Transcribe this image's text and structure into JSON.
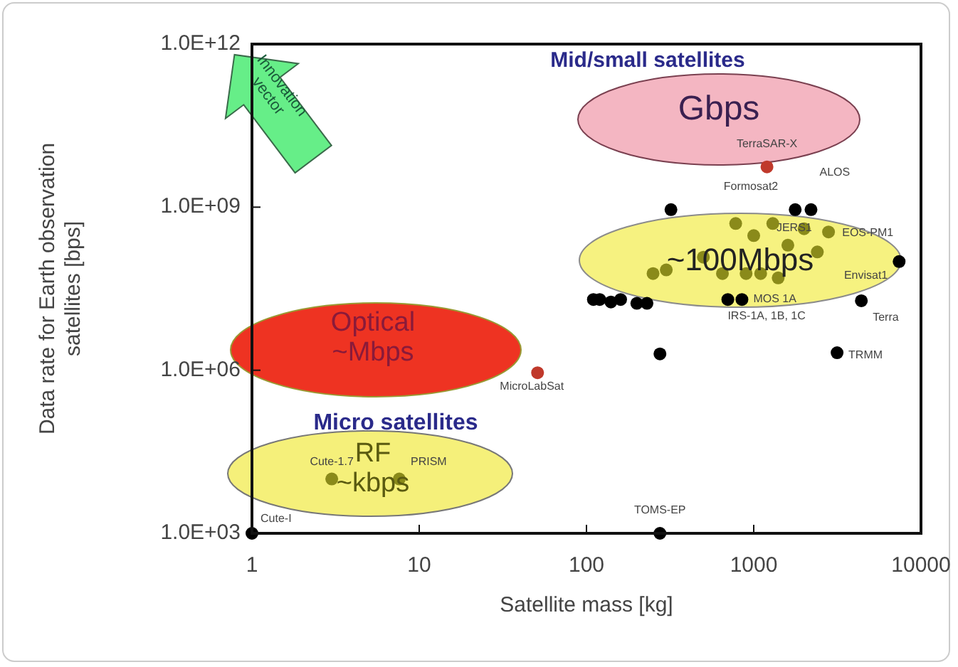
{
  "chart_data": {
    "type": "scatter",
    "xlabel": "Satellite mass [kg]",
    "ylabel": "Data rate for Earth observation\nsatellites [bps]",
    "log": "xy",
    "grid": false,
    "marker": "circle",
    "xlim": [
      1,
      10000
    ],
    "xticks": [
      1,
      10,
      100,
      1000,
      10000
    ],
    "ylim": [
      1000,
      1000000000000
    ],
    "yticks": [
      {
        "value": 1000,
        "label": "1.0E+03"
      },
      {
        "value": 1000000,
        "label": "1.0E+06"
      },
      {
        "value": 1000000000,
        "label": "1.0E+09"
      },
      {
        "value": 1000000000000,
        "label": "1.0E+12"
      }
    ],
    "x": [
      1,
      275,
      1200,
      51,
      320,
      1770,
      2200,
      7400,
      4400,
      3150,
      275,
      110,
      120,
      140,
      160,
      200,
      230,
      700,
      850,
      3,
      7.6,
      780,
      1000,
      1300,
      1600,
      2000,
      2400,
      2800,
      900,
      1100,
      1400,
      650,
      500,
      300,
      250
    ],
    "values": [
      1000,
      1000,
      5500000000,
      900000,
      900000000,
      900000000,
      900000000,
      100000000,
      19000000,
      2100000,
      2000000,
      20000000,
      20000000,
      18000000,
      20000000,
      17000000,
      17000000,
      20000000,
      20000000,
      10000,
      10000,
      500000000,
      300000000,
      500000000,
      200000000,
      400000000,
      150000000,
      350000000,
      60000000,
      60000000,
      50000000,
      60000000,
      120000000,
      70000000,
      60000000
    ],
    "colors": [
      "#000000",
      "#000000",
      "#c0392b",
      "#c0392b",
      "#000000",
      "#000000",
      "#000000",
      "#000000",
      "#000000",
      "#000000",
      "#000000",
      "#000000",
      "#000000",
      "#000000",
      "#000000",
      "#000000",
      "#000000",
      "#000000",
      "#000000",
      "#8a8a1a",
      "#8a8a1a",
      "#8a8a1a",
      "#8a8a1a",
      "#8a8a1a",
      "#8a8a1a",
      "#8a8a1a",
      "#8a8a1a",
      "#8a8a1a",
      "#8a8a1a",
      "#8a8a1a",
      "#8a8a1a",
      "#8a8a1a",
      "#8a8a1a",
      "#8a8a1a",
      "#8a8a1a"
    ],
    "annotations": [
      "Mid/small satellites",
      "Gbps",
      "~100Mbps",
      "Optical\n~Mbps",
      "Micro satellites",
      "RF\n~kbps",
      "Innovation\nvector",
      {
        "text": "Cute-I",
        "x": 1,
        "y": 1000
      },
      {
        "text": "TOMS-EP",
        "x": 275,
        "y": 1000
      },
      {
        "text": "TerraSAR-X",
        "x": 1200,
        "y": 5500000000
      },
      {
        "text": "MicroLabSat",
        "x": 51,
        "y": 900000
      },
      {
        "text": "TRMM",
        "x": 3150,
        "y": 2100000
      },
      {
        "text": "Cute-1.7",
        "x": 3,
        "y": 10000
      },
      {
        "text": "PRISM",
        "x": 7.6,
        "y": 10000
      },
      {
        "text": "Formosat2",
        "x": 1770,
        "y": 900000000
      },
      {
        "text": "ALOS",
        "x": 2200,
        "y": 900000000
      },
      {
        "text": "EOS-PM1",
        "x": 7400,
        "y": 100000000
      },
      {
        "text": "Envisat1",
        "x": 7400,
        "y": 100000000
      },
      {
        "text": "Terra",
        "x": 4400,
        "y": 19000000
      },
      {
        "text": "MOS 1A",
        "x": 850,
        "y": 20000000
      },
      {
        "text": "IRS-1A, 1B, 1C",
        "x": 850,
        "y": 20000000
      },
      {
        "text": "JERS1",
        "x": 1600,
        "y": 200000000
      }
    ]
  }
}
